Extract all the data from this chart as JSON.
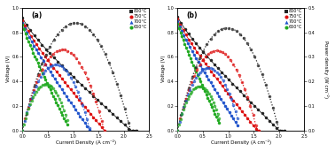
{
  "title_a": "(a)",
  "title_b": "(b)",
  "xlabel": "Current Density (A cm⁻²)",
  "ylabel_left": "Voltage (V)",
  "ylabel_right": "Power density (W cm⁻²)",
  "xlim": [
    0.0,
    2.5
  ],
  "ylim_left": [
    0.0,
    1.0
  ],
  "ylim_right": [
    0.0,
    0.5
  ],
  "temperatures": [
    "800°C",
    "750°C",
    "700°C",
    "650°C"
  ],
  "colors": [
    "#222222",
    "#dd1111",
    "#2255cc",
    "#22aa22"
  ],
  "panel_a": {
    "imax": [
      2.25,
      1.62,
      1.32,
      0.88
    ],
    "V0": [
      0.92,
      0.9,
      0.88,
      0.86
    ],
    "Rlin": [
      0.35,
      0.46,
      0.55,
      0.78
    ]
  },
  "panel_b": {
    "imax": [
      2.1,
      1.6,
      1.18,
      0.82
    ],
    "V0": [
      0.93,
      0.91,
      0.89,
      0.87
    ],
    "Rlin": [
      0.38,
      0.48,
      0.6,
      0.84
    ]
  },
  "background_color": "#ffffff",
  "xticks": [
    0.0,
    0.5,
    1.0,
    1.5,
    2.0,
    2.5
  ],
  "yticks_left": [
    0.0,
    0.2,
    0.4,
    0.6,
    0.8,
    1.0
  ],
  "yticks_right": [
    0.0,
    0.1,
    0.2,
    0.3,
    0.4,
    0.5
  ],
  "n_dots": 30,
  "linewidth": 0.6,
  "markersize": 2.5
}
